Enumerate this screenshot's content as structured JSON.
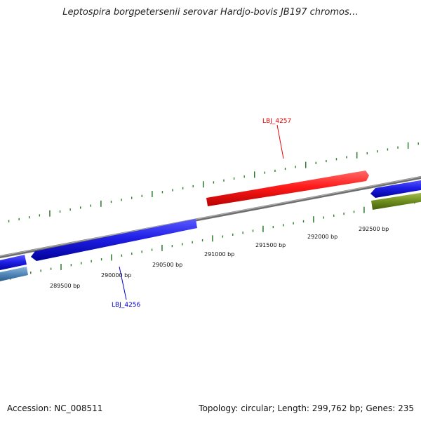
{
  "title": "Leptospira borgpetersenii serovar Hardjo-bovis JB197 chromos…",
  "footer": {
    "accession": "Accession: NC_008511",
    "topology": "Topology: circular; Length: 299,762 bp; Genes: 235"
  },
  "map": {
    "ticks": [
      "289500 bp",
      "290000 bp",
      "290500 bp",
      "291000 bp",
      "291500 bp",
      "292000 bp",
      "292500 bp"
    ],
    "genes": [
      {
        "id": "LBJ_4257",
        "color": "#e60000"
      },
      {
        "id": "LBJ_4256",
        "color": "#0000cc"
      }
    ],
    "colors": {
      "forward_gene": "#ff1a1a",
      "reverse_gene": "#1f1fe6",
      "light_blue_gene": "#4f86b8",
      "olive_gene": "#6f8f1f",
      "backbone": "#808080",
      "tick_marks": "#2a7a2a"
    }
  }
}
